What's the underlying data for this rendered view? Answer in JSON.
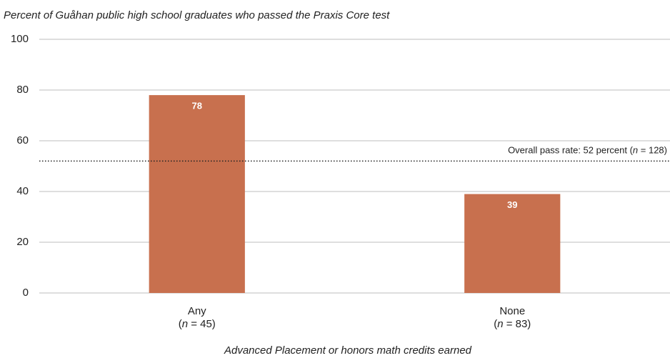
{
  "chart_data": {
    "type": "bar",
    "title": "Percent of Guåhan public high school graduates who passed the Praxis Core test",
    "x_label": "Advanced Placement or honors math credits earned",
    "categories": [
      "Any",
      "None"
    ],
    "category_notes": [
      "(n = 45)",
      "(n = 83)"
    ],
    "values": [
      78,
      39
    ],
    "color": "#c8704e",
    "ylim": [
      0,
      100
    ],
    "yticks": [
      0,
      20,
      40,
      60,
      80,
      100
    ],
    "grid": true,
    "reference_line": {
      "value": 52,
      "label": "Overall pass rate: 52 percent (n = 128)"
    }
  }
}
